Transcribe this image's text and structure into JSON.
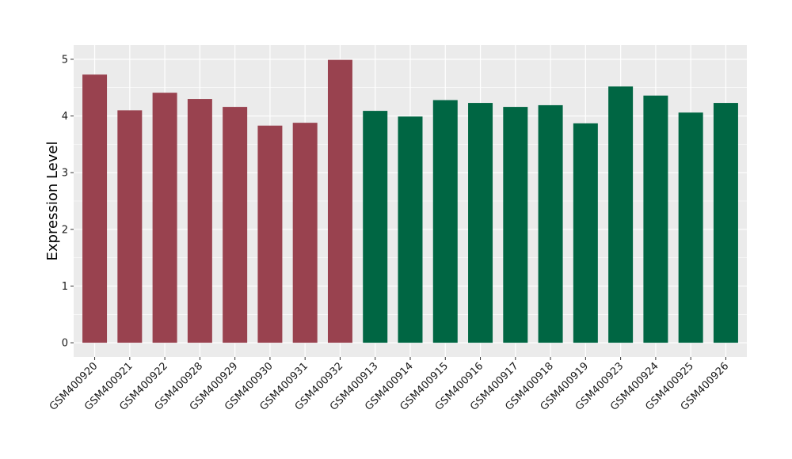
{
  "chart_data": {
    "type": "bar",
    "title": "",
    "xlabel": "",
    "ylabel": "Expression Level",
    "ylim": [
      -0.25,
      5.25
    ],
    "yticks": [
      0,
      1,
      2,
      3,
      4,
      5
    ],
    "grid": true,
    "legend": "none",
    "categories": [
      "GSM400920",
      "GSM400921",
      "GSM400922",
      "GSM400928",
      "GSM400929",
      "GSM400930",
      "GSM400931",
      "GSM400932",
      "GSM400913",
      "GSM400914",
      "GSM400915",
      "GSM400916",
      "GSM400917",
      "GSM400918",
      "GSM400919",
      "GSM400923",
      "GSM400924",
      "GSM400925",
      "GSM400926"
    ],
    "values": [
      4.73,
      4.1,
      4.41,
      4.3,
      4.16,
      3.83,
      3.88,
      4.99,
      4.09,
      3.99,
      4.28,
      4.23,
      4.16,
      4.19,
      3.87,
      4.52,
      4.36,
      4.06,
      4.23
    ],
    "bar_colors": [
      "#99424f",
      "#99424f",
      "#99424f",
      "#99424f",
      "#99424f",
      "#99424f",
      "#99424f",
      "#99424f",
      "#006643",
      "#006643",
      "#006643",
      "#006643",
      "#006643",
      "#006643",
      "#006643",
      "#006643",
      "#006643",
      "#006643",
      "#006643"
    ],
    "panel_background": "#ebebeb",
    "grid_color": "#ffffff"
  }
}
